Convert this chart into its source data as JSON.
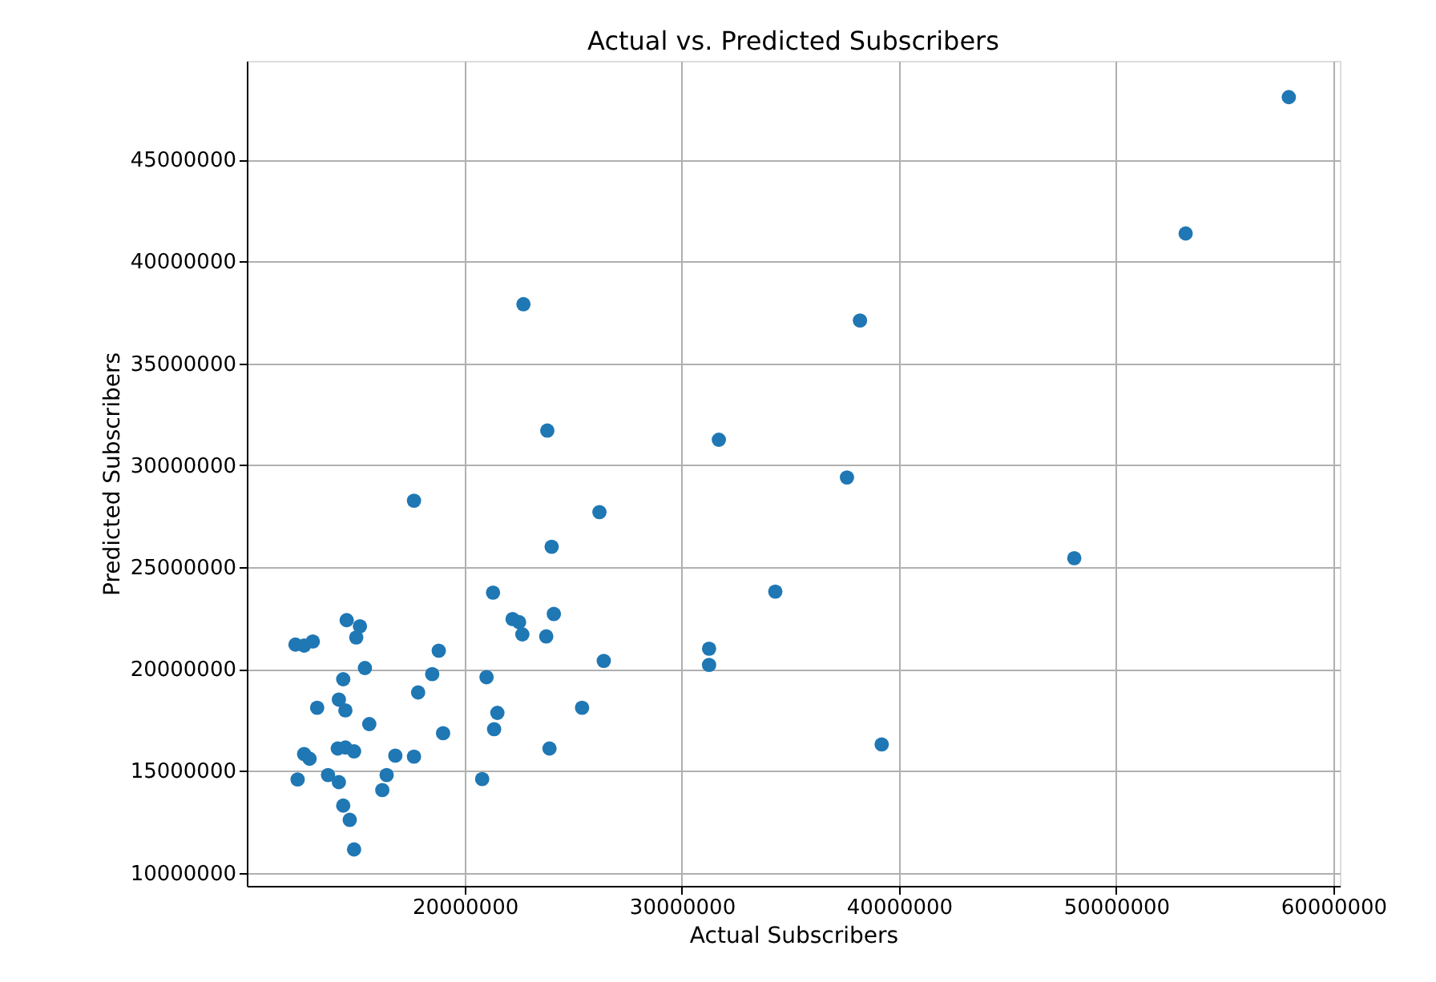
{
  "chart_data": {
    "type": "scatter",
    "title": "Actual vs. Predicted Subscribers",
    "xlabel": "Actual Subscribers",
    "ylabel": "Predicted Subscribers",
    "xlim": [
      9960000,
      60300000
    ],
    "ylim": [
      9360000,
      49840000
    ],
    "xticks": [
      20000000,
      30000000,
      40000000,
      50000000,
      60000000
    ],
    "yticks": [
      10000000,
      15000000,
      20000000,
      25000000,
      30000000,
      35000000,
      40000000,
      45000000
    ],
    "grid": true,
    "marker": "circle",
    "series": [
      {
        "color": "#1f77b4",
        "x": [
          17660000,
          26200000,
          24000000,
          21300000,
          22200000,
          22500000,
          22650000,
          23750000,
          24100000,
          26400000,
          25400000,
          23900000,
          20800000,
          21000000,
          21500000,
          21350000,
          18800000,
          18500000,
          17850000,
          19000000,
          17660000,
          16800000,
          16400000,
          16200000,
          15600000,
          15400000,
          14560000,
          15170000,
          15000000,
          14400000,
          14200000,
          14500000,
          13200000,
          12200000,
          12600000,
          13000000,
          12600000,
          12850000,
          12300000,
          13700000,
          14200000,
          14150000,
          14500000,
          14900000,
          14400000,
          14700000,
          14900000,
          22700000,
          38200000,
          23800000,
          31700000,
          37600000,
          34300000,
          31250000,
          31250000,
          39200000,
          48070000,
          53200000,
          57950000
        ],
        "values": [
          28260000,
          27700000,
          26000000,
          23750000,
          22450000,
          22300000,
          21700000,
          21600000,
          22700000,
          20400000,
          18100000,
          16100000,
          14600000,
          19600000,
          17850000,
          17050000,
          20900000,
          19750000,
          18850000,
          16850000,
          15700000,
          15750000,
          14800000,
          14060000,
          17300000,
          20050000,
          22400000,
          22100000,
          21550000,
          19500000,
          18500000,
          17970000,
          18100000,
          21200000,
          21150000,
          21350000,
          15830000,
          15600000,
          14580000,
          14800000,
          14450000,
          16100000,
          16150000,
          15960000,
          13300000,
          12600000,
          11150000,
          37900000,
          37100000,
          31700000,
          31250000,
          29400000,
          23800000,
          21000000,
          20200000,
          16300000,
          25440000,
          41370000,
          48060000
        ]
      }
    ]
  }
}
